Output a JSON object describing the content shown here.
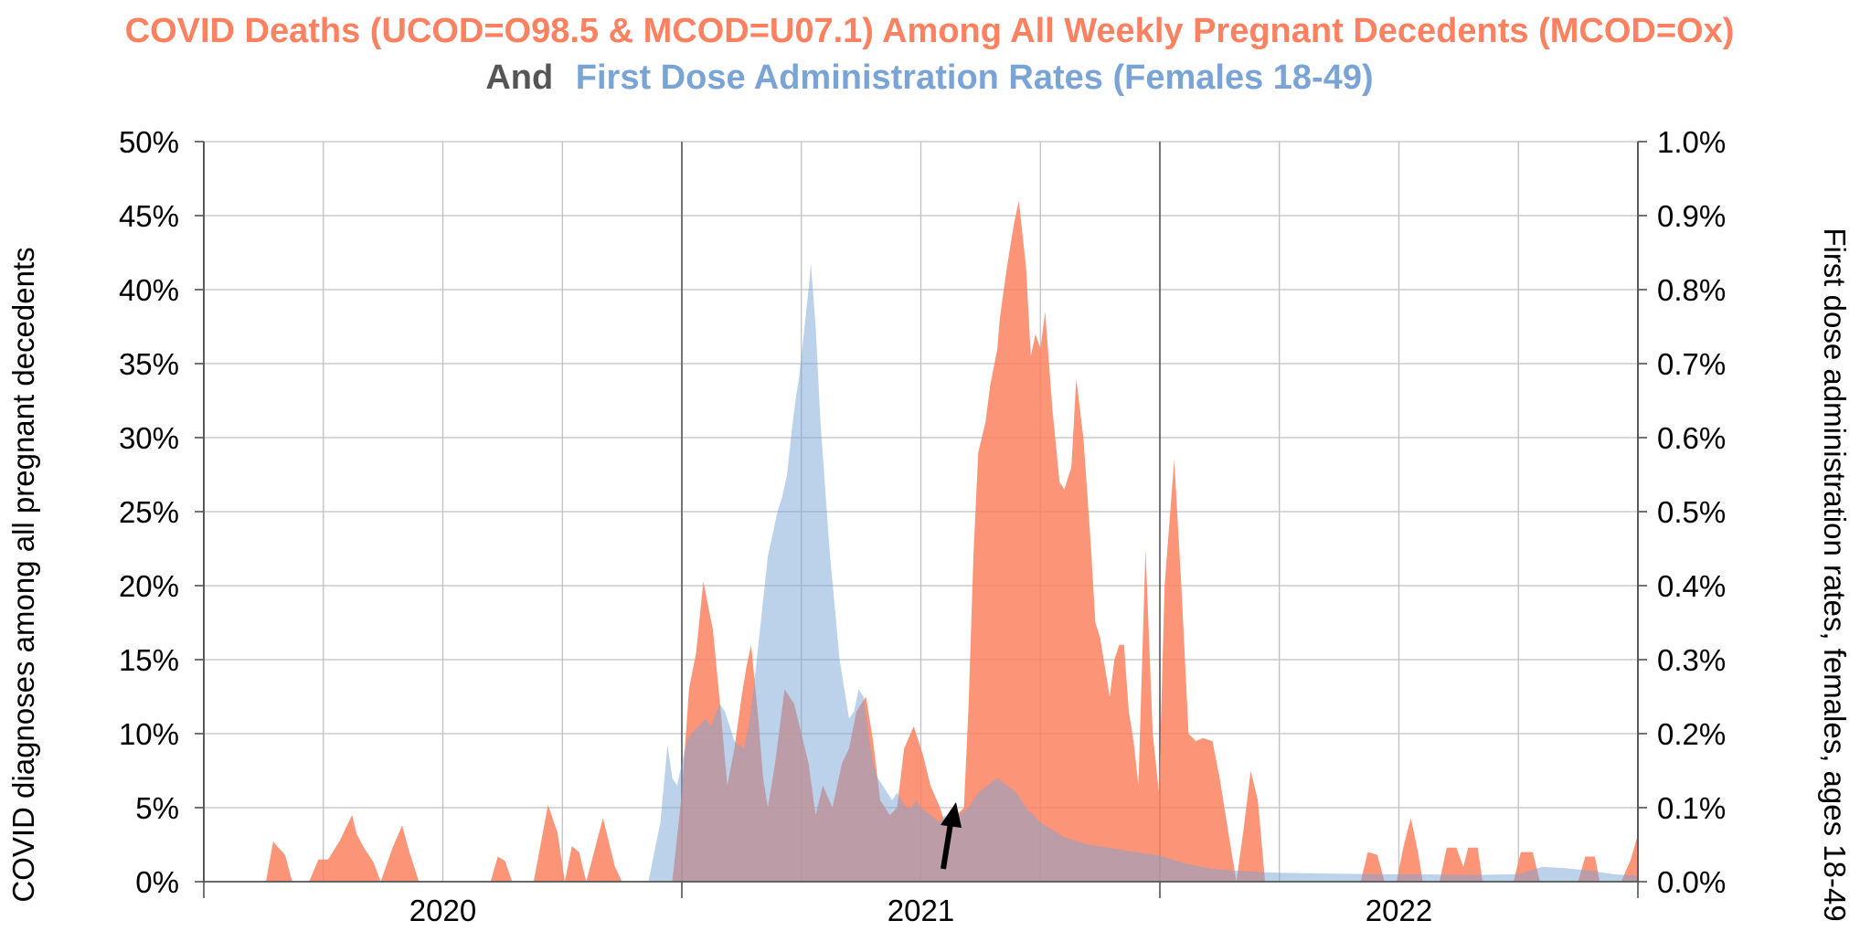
{
  "colors": {
    "deaths": "#fb8160",
    "doses": "#7aa4d6",
    "connector": "#555555",
    "grid": "#c0c0c0",
    "yearline": "#666666"
  },
  "chart_data": {
    "type": "area",
    "title_line1": "COVID Deaths (UCOD=O98.5 & MCOD=U07.1) Among All Weekly Pregnant Decedents (MCOD=Ox)",
    "title_line2_prefix": "And",
    "title_line2_rest": "First Dose Administration Rates (Females 18-49)",
    "ylabel_left": "COVID diagnoses among all pregnant decedents",
    "ylabel_right": "First dose administration rates, females, ages 18-49",
    "x_ticks": [
      "2020",
      "2021",
      "2022"
    ],
    "ylim_left": [
      0,
      50
    ],
    "ylim_right": [
      0,
      1.0
    ],
    "y_ticks_left": [
      "0%",
      "5%",
      "10%",
      "15%",
      "20%",
      "25%",
      "30%",
      "35%",
      "40%",
      "45%",
      "50%"
    ],
    "y_ticks_right": [
      "0.0%",
      "0.1%",
      "0.2%",
      "0.3%",
      "0.4%",
      "0.5%",
      "0.6%",
      "0.7%",
      "0.8%",
      "0.9%",
      "1.0%"
    ],
    "x_range": [
      2020.0,
      2023.0
    ],
    "grid": true,
    "series": [
      {
        "axis": "left",
        "unit": "%",
        "points": [
          [
            2020.0,
            0
          ],
          [
            2020.13,
            0
          ],
          [
            2020.145,
            2.7
          ],
          [
            2020.17,
            1.8
          ],
          [
            2020.185,
            0
          ],
          [
            2020.22,
            0
          ],
          [
            2020.24,
            1.5
          ],
          [
            2020.26,
            1.5
          ],
          [
            2020.285,
            2.8
          ],
          [
            2020.31,
            4.5
          ],
          [
            2020.32,
            3.2
          ],
          [
            2020.335,
            2.3
          ],
          [
            2020.355,
            1.3
          ],
          [
            2020.37,
            0
          ],
          [
            2020.395,
            2.3
          ],
          [
            2020.415,
            3.8
          ],
          [
            2020.43,
            2.0
          ],
          [
            2020.45,
            0
          ],
          [
            2020.6,
            0
          ],
          [
            2020.615,
            1.7
          ],
          [
            2020.63,
            1.4
          ],
          [
            2020.645,
            0
          ],
          [
            2020.665,
            0
          ],
          [
            2020.69,
            0
          ],
          [
            2020.72,
            5.2
          ],
          [
            2020.74,
            3.3
          ],
          [
            2020.755,
            0
          ],
          [
            2020.77,
            2.4
          ],
          [
            2020.785,
            2.0
          ],
          [
            2020.8,
            0
          ],
          [
            2020.835,
            4.3
          ],
          [
            2020.86,
            1.0
          ],
          [
            2020.875,
            0
          ],
          [
            2020.98,
            0
          ],
          [
            2021.0,
            6.0
          ],
          [
            2021.015,
            13.0
          ],
          [
            2021.03,
            15.5
          ],
          [
            2021.045,
            20.3
          ],
          [
            2021.065,
            17.0
          ],
          [
            2021.08,
            12.0
          ],
          [
            2021.095,
            6.5
          ],
          [
            2021.11,
            9.0
          ],
          [
            2021.125,
            12.5
          ],
          [
            2021.135,
            14.5
          ],
          [
            2021.145,
            16.0
          ],
          [
            2021.16,
            11.0
          ],
          [
            2021.17,
            7.0
          ],
          [
            2021.18,
            5.0
          ],
          [
            2021.195,
            8.0
          ],
          [
            2021.215,
            13.0
          ],
          [
            2021.235,
            12.0
          ],
          [
            2021.25,
            10.0
          ],
          [
            2021.265,
            8.0
          ],
          [
            2021.28,
            4.5
          ],
          [
            2021.295,
            6.5
          ],
          [
            2021.315,
            5.0
          ],
          [
            2021.335,
            8.0
          ],
          [
            2021.35,
            9.0
          ],
          [
            2021.365,
            11.5
          ],
          [
            2021.385,
            12.5
          ],
          [
            2021.4,
            9.5
          ],
          [
            2021.415,
            5.5
          ],
          [
            2021.435,
            4.5
          ],
          [
            2021.45,
            5.0
          ],
          [
            2021.465,
            9.0
          ],
          [
            2021.485,
            10.5
          ],
          [
            2021.505,
            8.5
          ],
          [
            2021.52,
            6.5
          ],
          [
            2021.54,
            5.0
          ],
          [
            2021.55,
            4.0
          ],
          [
            2021.56,
            4.0
          ],
          [
            2021.575,
            4.5
          ],
          [
            2021.59,
            5.0
          ],
          [
            2021.6,
            12.0
          ],
          [
            2021.61,
            22.0
          ],
          [
            2021.62,
            29.0
          ],
          [
            2021.635,
            31.0
          ],
          [
            2021.645,
            33.5
          ],
          [
            2021.66,
            36.0
          ],
          [
            2021.665,
            38.0
          ],
          [
            2021.68,
            41.5
          ],
          [
            2021.695,
            44.5
          ],
          [
            2021.705,
            46.0
          ],
          [
            2021.72,
            41.5
          ],
          [
            2021.73,
            35.5
          ],
          [
            2021.74,
            37.0
          ],
          [
            2021.75,
            36.0
          ],
          [
            2021.76,
            38.5
          ],
          [
            2021.775,
            32.0
          ],
          [
            2021.79,
            27.0
          ],
          [
            2021.8,
            26.5
          ],
          [
            2021.815,
            28.0
          ],
          [
            2021.825,
            34.0
          ],
          [
            2021.84,
            30.0
          ],
          [
            2021.855,
            23.0
          ],
          [
            2021.865,
            17.5
          ],
          [
            2021.875,
            16.5
          ],
          [
            2021.895,
            12.5
          ],
          [
            2021.905,
            15.0
          ],
          [
            2021.915,
            16.0
          ],
          [
            2021.925,
            16.0
          ],
          [
            2021.935,
            11.5
          ],
          [
            2021.945,
            9.5
          ],
          [
            2021.955,
            6.5
          ],
          [
            2021.97,
            22.5
          ],
          [
            2021.985,
            10.0
          ],
          [
            2021.998,
            6.0
          ],
          [
            2022.01,
            20.0
          ],
          [
            2022.03,
            28.5
          ],
          [
            2022.045,
            20.0
          ],
          [
            2022.06,
            10.0
          ],
          [
            2022.075,
            9.5
          ],
          [
            2022.09,
            9.7
          ],
          [
            2022.11,
            9.5
          ],
          [
            2022.125,
            7.0
          ],
          [
            2022.145,
            3.0
          ],
          [
            2022.16,
            0
          ],
          [
            2022.175,
            3.5
          ],
          [
            2022.19,
            7.5
          ],
          [
            2022.205,
            5.5
          ],
          [
            2022.22,
            0
          ],
          [
            2022.42,
            0
          ],
          [
            2022.435,
            2.0
          ],
          [
            2022.455,
            1.8
          ],
          [
            2022.47,
            0
          ],
          [
            2022.495,
            0
          ],
          [
            2022.51,
            2.4
          ],
          [
            2022.525,
            4.3
          ],
          [
            2022.54,
            2.0
          ],
          [
            2022.55,
            0
          ],
          [
            2022.585,
            0
          ],
          [
            2022.6,
            2.3
          ],
          [
            2022.62,
            2.3
          ],
          [
            2022.635,
            1.0
          ],
          [
            2022.645,
            2.3
          ],
          [
            2022.665,
            2.3
          ],
          [
            2022.675,
            0
          ],
          [
            2022.74,
            0
          ],
          [
            2022.755,
            2.0
          ],
          [
            2022.78,
            2.0
          ],
          [
            2022.795,
            0
          ],
          [
            2022.875,
            0
          ],
          [
            2022.89,
            1.7
          ],
          [
            2022.91,
            1.7
          ],
          [
            2022.92,
            0
          ],
          [
            2022.965,
            0
          ],
          [
            2022.985,
            1.5
          ],
          [
            2023.0,
            3.2
          ]
        ]
      },
      {
        "axis": "right",
        "unit": "%",
        "points": [
          [
            2020.0,
            0
          ],
          [
            2020.93,
            0
          ],
          [
            2020.955,
            0.08
          ],
          [
            2020.965,
            0.15
          ],
          [
            2020.97,
            0.185
          ],
          [
            2020.98,
            0.14
          ],
          [
            2020.99,
            0.13
          ],
          [
            2021.0,
            0.16
          ],
          [
            2021.01,
            0.19
          ],
          [
            2021.02,
            0.2
          ],
          [
            2021.035,
            0.21
          ],
          [
            2021.05,
            0.22
          ],
          [
            2021.06,
            0.21
          ],
          [
            2021.08,
            0.24
          ],
          [
            2021.09,
            0.23
          ],
          [
            2021.1,
            0.21
          ],
          [
            2021.11,
            0.19
          ],
          [
            2021.13,
            0.18
          ],
          [
            2021.14,
            0.21
          ],
          [
            2021.15,
            0.26
          ],
          [
            2021.16,
            0.32
          ],
          [
            2021.17,
            0.38
          ],
          [
            2021.18,
            0.44
          ],
          [
            2021.19,
            0.47
          ],
          [
            2021.2,
            0.5
          ],
          [
            2021.21,
            0.52
          ],
          [
            2021.22,
            0.55
          ],
          [
            2021.23,
            0.61
          ],
          [
            2021.24,
            0.66
          ],
          [
            2021.245,
            0.68
          ],
          [
            2021.255,
            0.74
          ],
          [
            2021.265,
            0.8
          ],
          [
            2021.27,
            0.835
          ],
          [
            2021.28,
            0.75
          ],
          [
            2021.29,
            0.62
          ],
          [
            2021.3,
            0.53
          ],
          [
            2021.31,
            0.44
          ],
          [
            2021.32,
            0.37
          ],
          [
            2021.33,
            0.3
          ],
          [
            2021.34,
            0.26
          ],
          [
            2021.35,
            0.22
          ],
          [
            2021.36,
            0.23
          ],
          [
            2021.37,
            0.26
          ],
          [
            2021.38,
            0.25
          ],
          [
            2021.39,
            0.2
          ],
          [
            2021.4,
            0.16
          ],
          [
            2021.41,
            0.14
          ],
          [
            2021.42,
            0.13
          ],
          [
            2021.43,
            0.12
          ],
          [
            2021.44,
            0.11
          ],
          [
            2021.45,
            0.12
          ],
          [
            2021.46,
            0.11
          ],
          [
            2021.47,
            0.1
          ],
          [
            2021.48,
            0.1
          ],
          [
            2021.49,
            0.11
          ],
          [
            2021.5,
            0.1
          ],
          [
            2021.52,
            0.09
          ],
          [
            2021.54,
            0.08
          ],
          [
            2021.55,
            0.09
          ],
          [
            2021.56,
            0.08
          ],
          [
            2021.58,
            0.09
          ],
          [
            2021.6,
            0.1
          ],
          [
            2021.62,
            0.12
          ],
          [
            2021.66,
            0.14
          ],
          [
            2021.7,
            0.12
          ],
          [
            2021.72,
            0.1
          ],
          [
            2021.75,
            0.08
          ],
          [
            2021.8,
            0.06
          ],
          [
            2021.85,
            0.05
          ],
          [
            2021.9,
            0.045
          ],
          [
            2021.95,
            0.04
          ],
          [
            2022.0,
            0.035
          ],
          [
            2022.05,
            0.025
          ],
          [
            2022.1,
            0.018
          ],
          [
            2022.15,
            0.015
          ],
          [
            2022.25,
            0.012
          ],
          [
            2022.35,
            0.011
          ],
          [
            2022.45,
            0.01
          ],
          [
            2022.55,
            0.01
          ],
          [
            2022.65,
            0.009
          ],
          [
            2022.75,
            0.01
          ],
          [
            2022.8,
            0.02
          ],
          [
            2022.85,
            0.018
          ],
          [
            2022.9,
            0.015
          ],
          [
            2022.95,
            0.01
          ],
          [
            2023.0,
            0.008
          ]
        ]
      }
    ]
  }
}
